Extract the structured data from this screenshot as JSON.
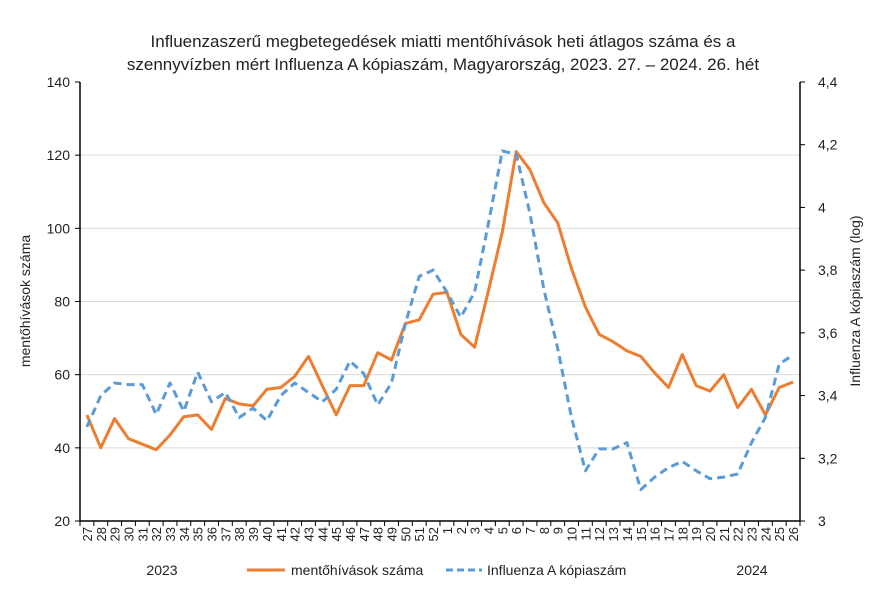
{
  "chart_data": {
    "type": "line",
    "title": [
      "Influenzaszerű megbetegedések miatti mentőhívások heti átlagos száma és a",
      "szennyvízben mért Influenza A kópiaszám, Magyarország, 2023. 27. – 2024. 26. hét"
    ],
    "ylabel": "mentőhívások száma",
    "y2label": "Influenza A kópiaszám (log)",
    "ylim": [
      20,
      140
    ],
    "yticks": [
      "20",
      "40",
      "60",
      "80",
      "100",
      "120",
      "140"
    ],
    "y2lim": [
      3,
      4.4
    ],
    "y2ticks": [
      "3",
      "3,2",
      "3,4",
      "3,6",
      "3,8",
      "4",
      "4,2",
      "4,4"
    ],
    "grid": true,
    "legend_position": "bottom",
    "year_labels": [
      "2023",
      "2024"
    ],
    "categories": [
      "27",
      "28",
      "29",
      "30",
      "31",
      "32",
      "33",
      "34",
      "35",
      "36",
      "37",
      "38",
      "39",
      "40",
      "41",
      "42",
      "43",
      "44",
      "45",
      "46",
      "47",
      "48",
      "49",
      "50",
      "51",
      "52",
      "1",
      "2",
      "3",
      "4",
      "5",
      "6",
      "7",
      "8",
      "9",
      "10",
      "11",
      "12",
      "13",
      "14",
      "15",
      "16",
      "17",
      "18",
      "19",
      "20",
      "21",
      "22",
      "23",
      "24",
      "25",
      "26"
    ],
    "series": [
      {
        "name": "mentőhívások száma",
        "axis": "left",
        "color": "#ed7d31",
        "style": "solid",
        "values": [
          49,
          40,
          48,
          42.5,
          41,
          39.5,
          43.5,
          48.5,
          49,
          45,
          53.5,
          52,
          51.5,
          56,
          56.5,
          59.5,
          65,
          57,
          49,
          57,
          57,
          66,
          64,
          74,
          75,
          82,
          82.5,
          71,
          67.5,
          83,
          99,
          121,
          116,
          107,
          101.5,
          89,
          78.5,
          71,
          69,
          66.5,
          65,
          60.5,
          56.5,
          65.5,
          57,
          55.5,
          60,
          51,
          56,
          49,
          56.5,
          58
        ]
      },
      {
        "name": "Influenza A kópiaszám",
        "axis": "right",
        "color": "#5b9bd5",
        "style": "dashed",
        "values": [
          3.3,
          3.4,
          3.44,
          3.435,
          3.435,
          3.34,
          3.44,
          3.35,
          3.475,
          3.38,
          3.41,
          3.33,
          3.36,
          3.32,
          3.4,
          3.44,
          3.41,
          3.38,
          3.42,
          3.51,
          3.47,
          3.37,
          3.44,
          3.63,
          3.78,
          3.8,
          3.73,
          3.65,
          3.73,
          3.95,
          4.18,
          4.17,
          3.98,
          3.74,
          3.55,
          3.33,
          3.16,
          3.23,
          3.23,
          3.25,
          3.1,
          3.14,
          3.17,
          3.19,
          3.16,
          3.135,
          3.14,
          3.15,
          3.25,
          3.33,
          3.5,
          3.53
        ]
      }
    ]
  }
}
